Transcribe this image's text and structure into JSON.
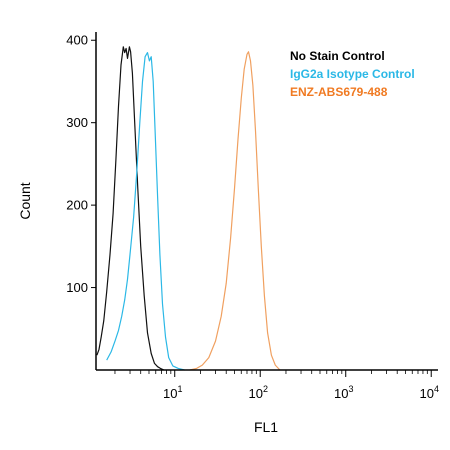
{
  "chart_data": {
    "type": "line",
    "xlabel": "FL1",
    "ylabel": "Count",
    "x_scale": "log",
    "xlim": [
      1.2,
      12000
    ],
    "ylim": [
      0,
      410
    ],
    "x_ticks": [
      10,
      100,
      1000,
      10000
    ],
    "x_tick_labels": [
      {
        "base": "10",
        "exp": "1"
      },
      {
        "base": "10",
        "exp": "2"
      },
      {
        "base": "10",
        "exp": "3"
      },
      {
        "base": "10",
        "exp": "4"
      }
    ],
    "y_ticks": [
      100,
      200,
      300,
      400
    ],
    "grid": false,
    "legend_position": "top-right",
    "series": [
      {
        "name": "No Stain Control",
        "color": "#111111",
        "x": [
          1.23,
          1.3,
          1.38,
          1.48,
          1.6,
          1.75,
          1.9,
          2.05,
          2.2,
          2.35,
          2.5,
          2.6,
          2.7,
          2.8,
          2.95,
          3.05,
          3.2,
          3.4,
          3.7,
          4.0,
          4.4,
          4.8,
          5.3,
          5.8,
          6.3,
          6.8,
          7.5
        ],
        "y": [
          18,
          25,
          40,
          60,
          95,
          140,
          190,
          255,
          320,
          370,
          392,
          385,
          390,
          378,
          392,
          386,
          360,
          300,
          220,
          150,
          90,
          45,
          20,
          8,
          4,
          2,
          0
        ]
      },
      {
        "name": "IgG2a Isotype Control",
        "color": "#2bb8e6",
        "x": [
          1.6,
          1.8,
          2.0,
          2.2,
          2.4,
          2.6,
          2.8,
          3.0,
          3.3,
          3.6,
          3.9,
          4.2,
          4.5,
          4.8,
          5.05,
          5.3,
          5.6,
          5.9,
          6.3,
          6.7,
          7.2,
          7.8,
          8.5,
          9.5,
          11.0,
          13.0
        ],
        "y": [
          12,
          22,
          35,
          48,
          65,
          85,
          110,
          140,
          185,
          240,
          300,
          350,
          380,
          385,
          375,
          380,
          350,
          290,
          210,
          140,
          80,
          40,
          15,
          5,
          2,
          0
        ]
      },
      {
        "name": "ENZ-ABS679-488",
        "color": "#f0a060",
        "x": [
          15,
          18,
          21,
          25,
          30,
          35,
          40,
          45,
          50,
          55,
          60,
          65,
          70,
          73,
          77,
          82,
          88,
          95,
          103,
          112,
          122,
          135,
          150,
          170
        ],
        "y": [
          0,
          2,
          6,
          15,
          35,
          65,
          105,
          160,
          220,
          280,
          330,
          365,
          383,
          386,
          375,
          345,
          290,
          220,
          150,
          90,
          45,
          18,
          6,
          0
        ]
      }
    ]
  }
}
